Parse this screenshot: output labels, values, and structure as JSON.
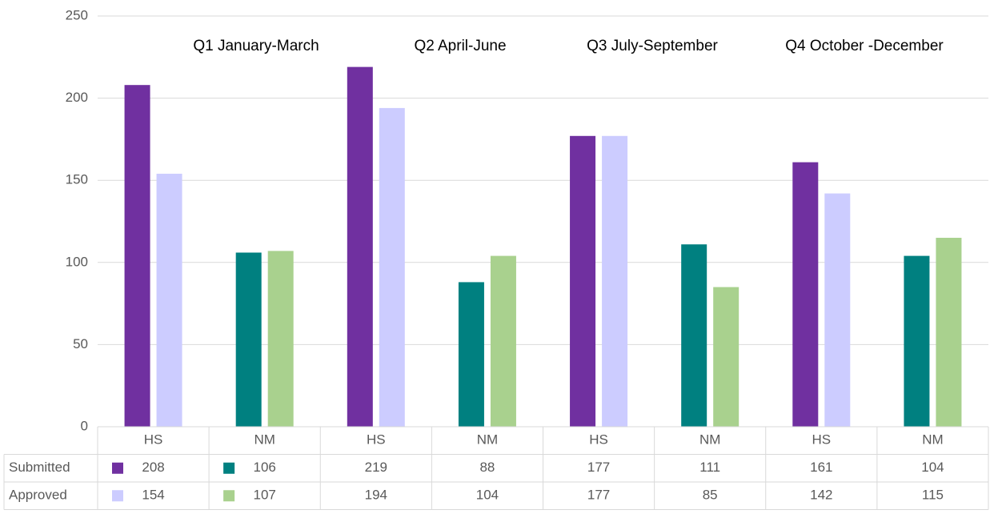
{
  "chart_data": {
    "type": "bar",
    "categories": [
      "HS",
      "NM",
      "HS",
      "NM",
      "HS",
      "NM",
      "HS",
      "NM"
    ],
    "series": [
      {
        "name": "Submitted",
        "colors": [
          "#7030a0",
          "#008080",
          "#7030a0",
          "#008080",
          "#7030a0",
          "#008080",
          "#7030a0",
          "#008080"
        ],
        "values": [
          208,
          106,
          219,
          88,
          177,
          111,
          161,
          104
        ]
      },
      {
        "name": "Approved",
        "colors": [
          "#ccccff",
          "#a9d18e",
          "#ccccff",
          "#a9d18e",
          "#ccccff",
          "#a9d18e",
          "#ccccff",
          "#a9d18e"
        ],
        "values": [
          154,
          107,
          194,
          104,
          177,
          85,
          142,
          115
        ]
      }
    ],
    "annotations": [
      "Q1 January-March",
      "Q2 April-June",
      "Q3 July-September",
      "Q4 October -December"
    ],
    "ylim": [
      0,
      250
    ],
    "yticks": [
      0,
      50,
      100,
      150,
      200,
      250
    ],
    "grid": true,
    "data_table": true
  }
}
